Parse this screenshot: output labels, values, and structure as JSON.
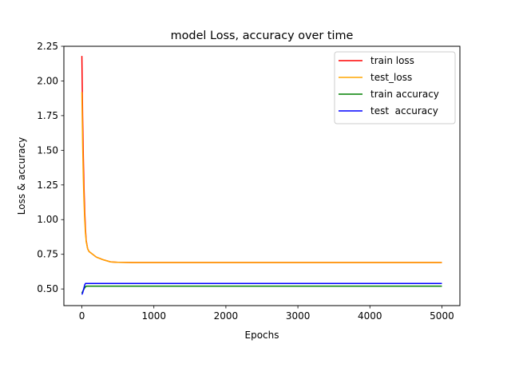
{
  "chart_data": {
    "type": "line",
    "title": "model Loss, accuracy over time",
    "xlabel": "Epochs",
    "ylabel": "Loss & accuracy",
    "xlim": [
      -250,
      5250
    ],
    "ylim": [
      0.38,
      2.25
    ],
    "xticks": [
      0,
      1000,
      2000,
      3000,
      4000,
      5000
    ],
    "xtick_labels": [
      "0",
      "1000",
      "2000",
      "3000",
      "4000",
      "5000"
    ],
    "yticks": [
      0.5,
      0.75,
      1.0,
      1.25,
      1.5,
      1.75,
      2.0,
      2.25
    ],
    "ytick_labels": [
      "0.50",
      "0.75",
      "1.00",
      "1.25",
      "1.50",
      "1.75",
      "2.00",
      "2.25"
    ],
    "grid": false,
    "legend_position": "top-right",
    "series": [
      {
        "name": "train loss",
        "color": "#ff0000",
        "x": [
          0,
          10,
          20,
          30,
          40,
          50,
          60,
          80,
          100,
          150,
          200,
          300,
          400,
          500,
          700,
          1000,
          2000,
          3000,
          4000,
          5000
        ],
        "y": [
          2.18,
          1.75,
          1.45,
          1.22,
          1.05,
          0.93,
          0.85,
          0.79,
          0.77,
          0.75,
          0.73,
          0.71,
          0.695,
          0.692,
          0.691,
          0.691,
          0.691,
          0.691,
          0.691,
          0.691
        ]
      },
      {
        "name": "test_loss",
        "color": "#ffa500",
        "x": [
          0,
          10,
          20,
          30,
          40,
          50,
          60,
          80,
          100,
          150,
          200,
          300,
          400,
          500,
          700,
          1000,
          2000,
          3000,
          4000,
          5000
        ],
        "y": [
          1.92,
          1.55,
          1.3,
          1.12,
          0.99,
          0.9,
          0.84,
          0.79,
          0.77,
          0.75,
          0.73,
          0.71,
          0.695,
          0.692,
          0.691,
          0.691,
          0.691,
          0.691,
          0.691,
          0.691
        ]
      },
      {
        "name": "train accuracy",
        "color": "#008000",
        "x": [
          0,
          10,
          20,
          30,
          40,
          50,
          60,
          80,
          100,
          200,
          1000,
          2000,
          3000,
          4000,
          5000
        ],
        "y": [
          0.47,
          0.48,
          0.49,
          0.5,
          0.51,
          0.515,
          0.52,
          0.52,
          0.52,
          0.52,
          0.52,
          0.52,
          0.52,
          0.52,
          0.52
        ]
      },
      {
        "name": "test  accuracy",
        "color": "#0000ff",
        "x": [
          0,
          10,
          20,
          30,
          40,
          50,
          60,
          80,
          100,
          200,
          1000,
          2000,
          3000,
          4000,
          5000
        ],
        "y": [
          0.46,
          0.47,
          0.49,
          0.51,
          0.53,
          0.54,
          0.54,
          0.54,
          0.54,
          0.54,
          0.54,
          0.54,
          0.54,
          0.54,
          0.54
        ]
      }
    ]
  }
}
